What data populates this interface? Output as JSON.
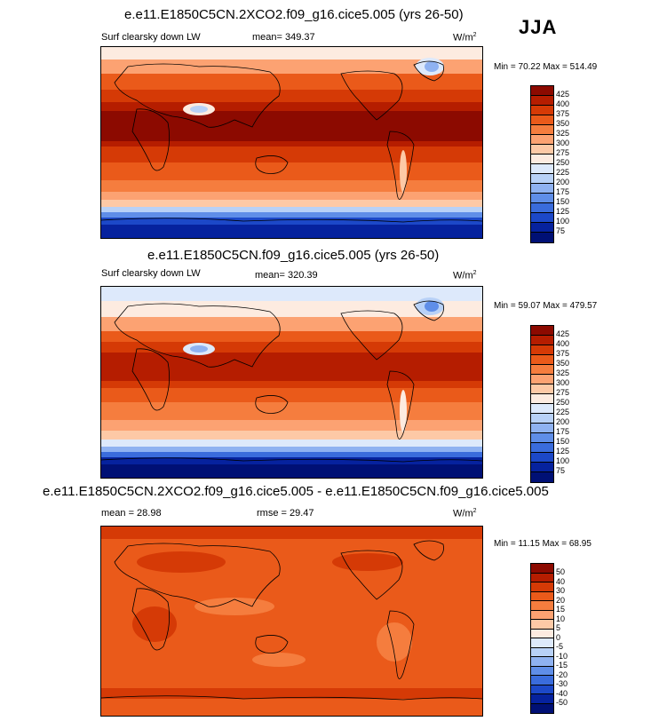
{
  "season": "JJA",
  "panels": [
    {
      "title": "e.e11.E1850C5CN.2XCO2.f09_g16.cice5.005 (yrs 26-50)",
      "left_label": "Surf clearsky down LW",
      "center_label": "mean= 349.37",
      "units": "W/m",
      "units_sup": "2",
      "minmax": "Min =  70.22 Max = 514.49",
      "levels": [
        "425",
        "400",
        "375",
        "350",
        "325",
        "300",
        "275",
        "250",
        "225",
        "200",
        "175",
        "150",
        "125",
        "100",
        "75"
      ],
      "colors": [
        "#8c0a00",
        "#b51d00",
        "#d53a06",
        "#ea5a1a",
        "#f57d3e",
        "#fca272",
        "#fdc9a6",
        "#fdebe0",
        "#dde9fb",
        "#b8d1f7",
        "#8fb2f1",
        "#5f8ee8",
        "#3a6cdc",
        "#1c48c8",
        "#06229e",
        "#001075"
      ]
    },
    {
      "title": "e.e11.E1850C5CN.f09_g16.cice5.005 (yrs 26-50)",
      "left_label": "Surf clearsky down LW",
      "center_label": "mean= 320.39",
      "units": "W/m",
      "units_sup": "2",
      "minmax": "Min =  59.07 Max = 479.57",
      "levels": [
        "425",
        "400",
        "375",
        "350",
        "325",
        "300",
        "275",
        "250",
        "225",
        "200",
        "175",
        "150",
        "125",
        "100",
        "75"
      ],
      "colors": [
        "#8c0a00",
        "#b51d00",
        "#d53a06",
        "#ea5a1a",
        "#f57d3e",
        "#fca272",
        "#fdc9a6",
        "#fdebe0",
        "#dde9fb",
        "#b8d1f7",
        "#8fb2f1",
        "#5f8ee8",
        "#3a6cdc",
        "#1c48c8",
        "#06229e",
        "#001075"
      ]
    },
    {
      "title": "e.e11.E1850C5CN.2XCO2.f09_g16.cice5.005 - e.e11.E1850C5CN.f09_g16.cice5.005",
      "left_label": "mean =  28.98",
      "center_label": "rmse =  29.47",
      "units": "W/m",
      "units_sup": "2",
      "minmax": "Min =  11.15 Max =  68.95",
      "levels": [
        "50",
        "40",
        "30",
        "20",
        "15",
        "10",
        "5",
        "0",
        "-5",
        "-10",
        "-15",
        "-20",
        "-30",
        "-40",
        "-50"
      ],
      "colors": [
        "#8c0a00",
        "#b51d00",
        "#d53a06",
        "#ea5a1a",
        "#f57d3e",
        "#fca272",
        "#fdc9a6",
        "#fdebe0",
        "#dde9fb",
        "#b8d1f7",
        "#8fb2f1",
        "#5f8ee8",
        "#3a6cdc",
        "#1c48c8",
        "#06229e",
        "#001075"
      ]
    }
  ]
}
